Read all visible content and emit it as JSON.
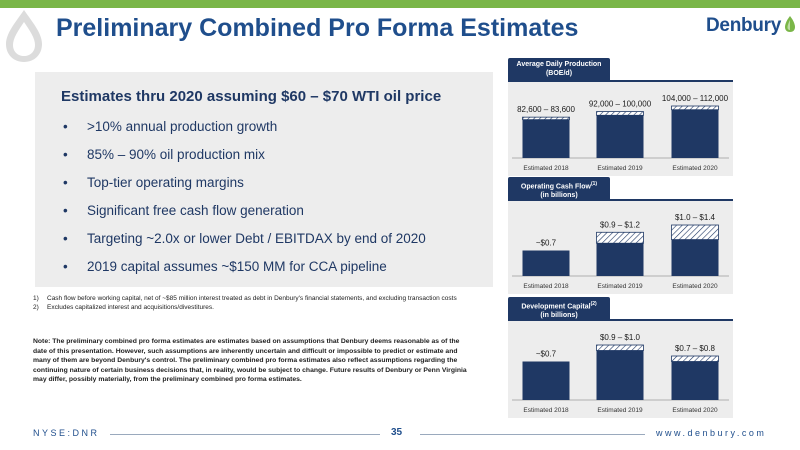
{
  "header": {
    "title": "Preliminary Combined Pro Forma Estimates",
    "logo_text": "Denbury",
    "accent_color": "#7ab648",
    "brand_color": "#1f4e8c"
  },
  "estimates": {
    "heading": "Estimates thru 2020 assuming $60 – $70 WTI oil price",
    "bullets": [
      ">10% annual production growth",
      "85% – 90% oil production mix",
      "Top-tier operating margins",
      "Significant free cash flow generation",
      "Targeting ~2.0x or lower Debt / EBITDAX by end of 2020",
      "2019 capital assumes ~$150 MM for CCA pipeline"
    ]
  },
  "footnotes": [
    {
      "num": "1)",
      "text": "Cash flow before working capital, net of ~$85 million interest treated as debt in Denbury's financial statements, and excluding transaction costs"
    },
    {
      "num": "2)",
      "text": "Excludes capitalized interest and acquisitions/divestitures."
    }
  ],
  "note": {
    "label": "Note:",
    "text": "The preliminary combined pro forma estimates are estimates based on assumptions that Denbury deems reasonable as of the date of this presentation. However, such assumptions are inherently uncertain and difficult or impossible to predict or estimate and many of them are beyond Denbury's control. The preliminary combined pro forma estimates also reflect assumptions regarding the continuing nature of certain business decisions that, in reality, would be subject to change. Future results of Denbury or Penn Virginia may differ, possibly materially, from the preliminary combined pro forma estimates."
  },
  "chart_data": [
    {
      "type": "bar",
      "title_line1": "Average Daily Production",
      "title_line2": "(BOE/d)",
      "title_sup": "",
      "categories": [
        "Estimated 2018",
        "Estimated 2019",
        "Estimated 2020"
      ],
      "low": [
        82600,
        92000,
        104000
      ],
      "high": [
        83600,
        100000,
        112000
      ],
      "labels": [
        "82,600 – 83,600",
        "92,000 – 100,000",
        "104,000 – 112,000"
      ],
      "ylim": [
        0,
        112000
      ]
    },
    {
      "type": "bar",
      "title_line1": "Operating Cash Flow",
      "title_line2": "(in billions)",
      "title_sup": "(1)",
      "categories": [
        "Estimated 2018",
        "Estimated 2019",
        "Estimated 2020"
      ],
      "low": [
        0.7,
        0.9,
        1.0
      ],
      "high": [
        0.7,
        1.2,
        1.4
      ],
      "labels": [
        "~$0.7",
        "$0.9 – $1.2",
        "$1.0 – $1.4"
      ],
      "ylim": [
        0,
        1.4
      ]
    },
    {
      "type": "bar",
      "title_line1": "Development Capital",
      "title_line2": "(in billions)",
      "title_sup": "(2)",
      "categories": [
        "Estimated 2018",
        "Estimated 2019",
        "Estimated 2020"
      ],
      "low": [
        0.7,
        0.9,
        0.7
      ],
      "high": [
        0.7,
        1.0,
        0.8
      ],
      "labels": [
        "~$0.7",
        "$0.9 – $1.0",
        "$0.7 – $0.8"
      ],
      "ylim": [
        0,
        1.0
      ]
    }
  ],
  "footer": {
    "left": "NYSE:DNR",
    "page": "35",
    "right": "www.denbury.com"
  }
}
